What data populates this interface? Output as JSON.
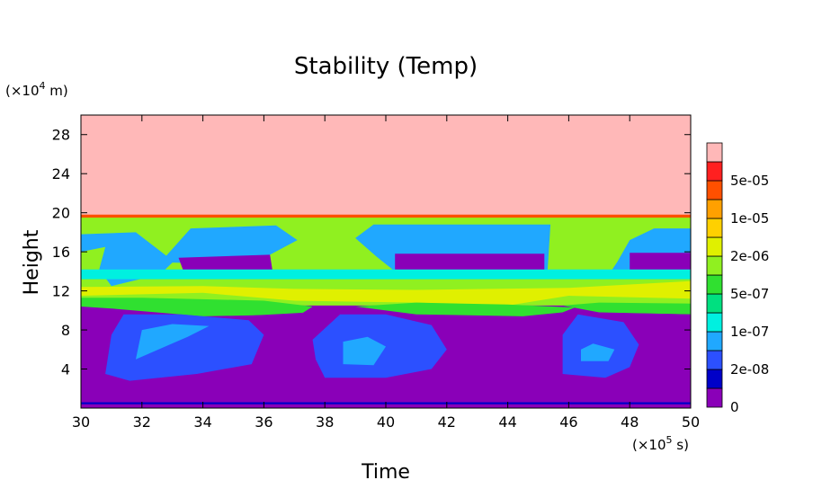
{
  "chart_data": {
    "type": "contour",
    "title": "Stability (Temp)",
    "xlabel": "Time",
    "ylabel": "Height",
    "x_unit_parts": [
      "(×10",
      "5",
      " s)"
    ],
    "y_unit_parts": [
      "(×10",
      "4",
      " m)"
    ],
    "xlim": [
      30,
      50
    ],
    "ylim": [
      0,
      30
    ],
    "x_ticks": [
      30,
      32,
      34,
      36,
      38,
      40,
      42,
      44,
      46,
      48,
      50
    ],
    "x_tick_labels": [
      "30",
      "32",
      "34",
      "36",
      "38",
      "40",
      "42",
      "44",
      "46",
      "48",
      "50"
    ],
    "y_ticks": [
      4,
      8,
      12,
      16,
      20,
      24,
      28
    ],
    "y_tick_labels": [
      "4",
      "8",
      "12",
      "16",
      "20",
      "24",
      "28"
    ],
    "colorbar": {
      "levels": [
        {
          "color": "#8a00b8",
          "label": "0"
        },
        {
          "color": "#0000c8",
          "label": ""
        },
        {
          "color": "#2c50ff",
          "label": "2e-08"
        },
        {
          "color": "#20a8ff",
          "label": ""
        },
        {
          "color": "#00f0e0",
          "label": "1e-07"
        },
        {
          "color": "#00e080",
          "label": ""
        },
        {
          "color": "#30e030",
          "label": "5e-07"
        },
        {
          "color": "#90f020",
          "label": ""
        },
        {
          "color": "#e0f000",
          "label": "2e-06"
        },
        {
          "color": "#ffd000",
          "label": ""
        },
        {
          "color": "#ffa000",
          "label": "1e-05"
        },
        {
          "color": "#ff5000",
          "label": ""
        },
        {
          "color": "#ff2020",
          "label": "5e-05"
        },
        {
          "color": "#ffb8b8",
          "label": ""
        }
      ]
    },
    "regions": [
      {
        "level": 13,
        "points": [
          [
            30,
            19.7
          ],
          [
            50,
            19.7
          ],
          [
            50,
            30
          ],
          [
            30,
            30
          ]
        ]
      },
      {
        "level": 11,
        "points": [
          [
            30,
            19.4
          ],
          [
            50,
            19.4
          ],
          [
            50,
            19.8
          ],
          [
            30,
            19.8
          ]
        ]
      },
      {
        "level": 7,
        "points": [
          [
            30,
            10.5
          ],
          [
            50,
            10.5
          ],
          [
            50,
            19.5
          ],
          [
            30,
            19.5
          ]
        ]
      },
      {
        "level": 3,
        "points": [
          [
            30,
            17.8
          ],
          [
            31.8,
            18
          ],
          [
            32.8,
            15.6
          ],
          [
            33.6,
            18.4
          ],
          [
            36.4,
            18.7
          ],
          [
            37.1,
            17.2
          ],
          [
            35.6,
            14.7
          ],
          [
            33,
            14.9
          ],
          [
            32.6,
            13.7
          ],
          [
            31,
            12.5
          ],
          [
            30.6,
            14.2
          ],
          [
            30.8,
            16.5
          ],
          [
            30,
            16
          ]
        ]
      },
      {
        "level": 0,
        "points": [
          [
            33.2,
            15.4
          ],
          [
            36.2,
            15.7
          ],
          [
            36.3,
            13.7
          ],
          [
            33.4,
            13.7
          ]
        ]
      },
      {
        "level": 3,
        "points": [
          [
            39,
            17.4
          ],
          [
            39.6,
            18.8
          ],
          [
            45.4,
            18.8
          ],
          [
            45.3,
            13.8
          ],
          [
            40.5,
            13.5
          ],
          [
            39.7,
            15.5
          ]
        ]
      },
      {
        "level": 0,
        "points": [
          [
            40.3,
            15.8
          ],
          [
            45.2,
            15.8
          ],
          [
            45.2,
            13.9
          ],
          [
            40.3,
            13.9
          ]
        ]
      },
      {
        "level": 3,
        "points": [
          [
            48,
            17.2
          ],
          [
            48.8,
            18.4
          ],
          [
            50,
            18.4
          ],
          [
            50,
            13.7
          ],
          [
            47.3,
            13.6
          ],
          [
            47.6,
            15
          ]
        ]
      },
      {
        "level": 0,
        "points": [
          [
            48,
            15.9
          ],
          [
            50,
            15.9
          ],
          [
            50,
            13.8
          ],
          [
            48,
            13.8
          ]
        ]
      },
      {
        "level": 4,
        "points": [
          [
            30,
            13.2
          ],
          [
            50,
            13.2
          ],
          [
            50,
            14.2
          ],
          [
            30,
            14.2
          ]
        ]
      },
      {
        "level": 8,
        "points": [
          [
            30,
            11.5
          ],
          [
            34,
            11.8
          ],
          [
            37,
            11
          ],
          [
            41,
            10.8
          ],
          [
            44,
            10.5
          ],
          [
            46,
            11.5
          ],
          [
            50,
            11.2
          ],
          [
            50,
            13
          ],
          [
            46,
            12.3
          ],
          [
            41,
            12.1
          ],
          [
            37,
            12.2
          ],
          [
            34,
            12.5
          ],
          [
            30,
            12.4
          ]
        ]
      },
      {
        "level": 6,
        "points": [
          [
            30,
            10.4
          ],
          [
            31,
            10.2
          ],
          [
            34,
            9.4
          ],
          [
            37.2,
            9.6
          ],
          [
            37.6,
            10.4
          ],
          [
            36,
            11
          ],
          [
            32,
            11.3
          ],
          [
            30,
            11.3
          ]
        ]
      },
      {
        "level": 6,
        "points": [
          [
            39,
            10.4
          ],
          [
            41,
            9.6
          ],
          [
            44.5,
            9.4
          ],
          [
            45.8,
            9.8
          ],
          [
            46.2,
            10.3
          ],
          [
            44,
            10.6
          ],
          [
            41,
            10.8
          ]
        ]
      },
      {
        "level": 6,
        "points": [
          [
            45.8,
            10.5
          ],
          [
            47,
            9.8
          ],
          [
            50,
            9.6
          ],
          [
            50,
            10.7
          ],
          [
            47,
            10.8
          ]
        ]
      },
      {
        "level": 0,
        "points": [
          [
            30,
            0.4
          ],
          [
            50,
            0.4
          ],
          [
            50,
            9.6
          ],
          [
            46.5,
            9.8
          ],
          [
            45.5,
            9.2
          ],
          [
            42,
            9.3
          ],
          [
            39.5,
            9.8
          ],
          [
            37.5,
            9.8
          ],
          [
            34,
            9.2
          ],
          [
            31,
            9.8
          ],
          [
            30,
            9.6
          ]
        ]
      },
      {
        "level": 2,
        "points": [
          [
            30.8,
            3.5
          ],
          [
            31.6,
            2.8
          ],
          [
            33.8,
            3.5
          ],
          [
            35.6,
            4.5
          ],
          [
            36,
            7.5
          ],
          [
            35.5,
            9
          ],
          [
            33.3,
            9.6
          ],
          [
            31.4,
            9.6
          ],
          [
            31,
            7.5
          ]
        ]
      },
      {
        "level": 3,
        "points": [
          [
            31.8,
            5
          ],
          [
            33.5,
            7.3
          ],
          [
            34.2,
            8.4
          ],
          [
            33,
            8.6
          ],
          [
            32,
            8
          ]
        ]
      },
      {
        "level": 2,
        "points": [
          [
            38,
            3.1
          ],
          [
            40,
            3.1
          ],
          [
            41.5,
            4
          ],
          [
            42,
            6
          ],
          [
            41.5,
            8.5
          ],
          [
            40,
            9.6
          ],
          [
            38.5,
            9.6
          ],
          [
            37.6,
            7
          ],
          [
            37.7,
            5
          ]
        ]
      },
      {
        "level": 3,
        "points": [
          [
            38.6,
            4.5
          ],
          [
            39.6,
            4.4
          ],
          [
            40,
            6.3
          ],
          [
            39.4,
            7.3
          ],
          [
            38.6,
            6.8
          ]
        ]
      },
      {
        "level": 2,
        "points": [
          [
            45.8,
            3.5
          ],
          [
            47.2,
            3.1
          ],
          [
            48,
            4.2
          ],
          [
            48.3,
            6.5
          ],
          [
            47.8,
            8.8
          ],
          [
            46.3,
            9.6
          ],
          [
            45.8,
            7.5
          ]
        ]
      },
      {
        "level": 3,
        "points": [
          [
            46.4,
            4.8
          ],
          [
            47.3,
            4.8
          ],
          [
            47.5,
            6
          ],
          [
            46.8,
            6.6
          ],
          [
            46.4,
            6
          ]
        ]
      },
      {
        "level": 1,
        "points": [
          [
            30,
            0.4
          ],
          [
            50,
            0.4
          ],
          [
            50,
            0.6
          ],
          [
            30,
            0.6
          ]
        ]
      }
    ]
  }
}
